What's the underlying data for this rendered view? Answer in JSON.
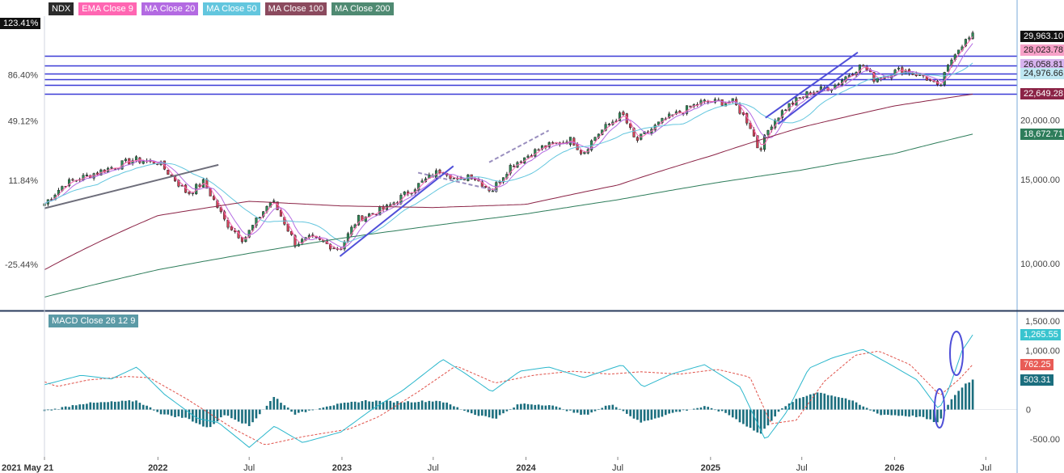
{
  "colors": {
    "up": "#2e8b57",
    "down": "#d4435a",
    "ema9": "#ff66b2",
    "ma20": "#b36ae2",
    "ma50": "#63c6de",
    "ma100": "#8b2346",
    "ma200": "#2e7d5b",
    "hline": "#3a3ad6",
    "trend": "#4f4fd8",
    "macd_line": "#2bb7cc",
    "signal_line": "#e0524a",
    "hist": "#1b6e7e"
  },
  "legend": [
    {
      "label": "NDX",
      "color": "#2b2b2b"
    },
    {
      "label": "EMA Close 9",
      "color": "#ff66b2"
    },
    {
      "label": "MA Close 20",
      "color": "#b36ae2"
    },
    {
      "label": "MA Close 50",
      "color": "#63c6de"
    },
    {
      "label": "MA Close 100",
      "color": "#8b4a5e"
    },
    {
      "label": "MA Close 200",
      "color": "#4f8a72"
    }
  ],
  "macd_legend": {
    "label": "MACD Close 26 12 9",
    "color": "#5b9aa6"
  },
  "left_badge": {
    "label": "123.41%"
  },
  "right_badges": [
    {
      "label": "29,963.10",
      "bg": "#111111",
      "fg": "#ffffff"
    },
    {
      "label": "28,023.78",
      "bg": "#f7a1c8",
      "fg": "#222222"
    },
    {
      "label": "26,058.81",
      "bg": "#d7b3ee",
      "fg": "#222222"
    },
    {
      "label": "24,976.66",
      "bg": "#bfe7f2",
      "fg": "#222222"
    },
    {
      "label": "22,649.28",
      "bg": "#8b2346",
      "fg": "#ffffff"
    },
    {
      "label": "18,672.71",
      "bg": "#2e7d5b",
      "fg": "#ffffff"
    }
  ],
  "macd_badges": [
    {
      "label": "1,265.55",
      "bg": "#39c4cf",
      "fg": "#ffffff"
    },
    {
      "label": "762.25",
      "bg": "#e85c56",
      "fg": "#ffffff"
    },
    {
      "label": "503.31",
      "bg": "#1b6e7e",
      "fg": "#ffffff"
    }
  ],
  "chart_data": {
    "type": "candlestick",
    "title": "",
    "symbol": "NDX",
    "y_scale": "log",
    "y_right_ticks": [
      {
        "value": 10000,
        "label": "10,000.00"
      },
      {
        "value": 15000,
        "label": "15,000.00"
      },
      {
        "value": 20000,
        "label": "20,000.00"
      }
    ],
    "y_left_ticks": [
      {
        "label": "86.40%",
        "value": 86.4
      },
      {
        "label": "49.12%",
        "value": 49.12
      },
      {
        "label": "11.84%",
        "value": 11.84
      },
      {
        "label": "-25.44%",
        "value": -25.44
      }
    ],
    "x_ticks": [
      {
        "date": "2021-05-21",
        "label": "2021 May 21"
      },
      {
        "date": "2022-01-01",
        "label": "2022"
      },
      {
        "date": "2022-07-01",
        "label": "Jul"
      },
      {
        "date": "2023-01-01",
        "label": "2023"
      },
      {
        "date": "2023-07-01",
        "label": "Jul"
      },
      {
        "date": "2024-01-01",
        "label": "2024"
      },
      {
        "date": "2024-07-01",
        "label": "Jul"
      },
      {
        "date": "2025-01-01",
        "label": "2025"
      },
      {
        "date": "2025-07-01",
        "label": "Jul"
      },
      {
        "date": "2026-01-01",
        "label": "2026"
      },
      {
        "date": "2026-07-01",
        "label": "Jul"
      }
    ],
    "x_range": [
      "2021-05-21",
      "2026-09-01"
    ],
    "y_range": [
      8000,
      33000
    ],
    "horizontal_levels": [
      27300,
      26000,
      24976.66,
      24300,
      23700,
      22649.28
    ],
    "price_path": [
      [
        "2021-05-21",
        13350
      ],
      [
        "2021-07-01",
        14700
      ],
      [
        "2021-09-01",
        15500
      ],
      [
        "2021-11-15",
        16500
      ],
      [
        "2022-01-01",
        16300
      ],
      [
        "2022-03-01",
        14000
      ],
      [
        "2022-04-01",
        14800
      ],
      [
        "2022-05-15",
        12200
      ],
      [
        "2022-06-20",
        11200
      ],
      [
        "2022-08-15",
        13600
      ],
      [
        "2022-09-30",
        11000
      ],
      [
        "2022-11-01",
        11300
      ],
      [
        "2022-12-28",
        10700
      ],
      [
        "2023-02-01",
        12400
      ],
      [
        "2023-04-01",
        13100
      ],
      [
        "2023-06-01",
        14600
      ],
      [
        "2023-07-20",
        15800
      ],
      [
        "2023-08-20",
        14800
      ],
      [
        "2023-09-10",
        15400
      ],
      [
        "2023-10-25",
        14200
      ],
      [
        "2023-12-01",
        16000
      ],
      [
        "2024-02-01",
        17500
      ],
      [
        "2024-04-01",
        18200
      ],
      [
        "2024-04-22",
        17000
      ],
      [
        "2024-05-20",
        18600
      ],
      [
        "2024-07-10",
        20600
      ],
      [
        "2024-08-05",
        18000
      ],
      [
        "2024-10-01",
        20000
      ],
      [
        "2024-12-15",
        21800
      ],
      [
        "2025-02-15",
        21800
      ],
      [
        "2025-03-20",
        19500
      ],
      [
        "2025-04-07",
        17200
      ],
      [
        "2025-05-01",
        19600
      ],
      [
        "2025-06-01",
        21300
      ],
      [
        "2025-07-15",
        22800
      ],
      [
        "2025-09-01",
        23500
      ],
      [
        "2025-10-29",
        26100
      ],
      [
        "2025-11-20",
        24400
      ],
      [
        "2026-01-15",
        25500
      ],
      [
        "2026-03-01",
        24700
      ],
      [
        "2026-03-30",
        23200
      ],
      [
        "2026-04-15",
        25500
      ],
      [
        "2026-05-01",
        27800
      ],
      [
        "2026-05-20",
        29200
      ],
      [
        "2026-06-05",
        29963.1
      ]
    ],
    "series": [
      {
        "name": "EMA Close 9",
        "last": 28023.78,
        "lag_weeks": 3,
        "offset": 1.0
      },
      {
        "name": "MA Close 20",
        "last": 26058.81,
        "lag_weeks": 6,
        "offset": 1.0
      },
      {
        "name": "MA Close 50",
        "last": 24976.66,
        "lag_weeks": 16,
        "offset": 1.0
      },
      {
        "name": "MA Close 100",
        "last": 22649.28,
        "points": [
          [
            "2021-05-21",
            9700
          ],
          [
            "2022-01-01",
            12600
          ],
          [
            "2022-07-01",
            13500
          ],
          [
            "2023-01-01",
            13200
          ],
          [
            "2023-07-01",
            13100
          ],
          [
            "2024-01-01",
            13300
          ],
          [
            "2024-07-01",
            14600
          ],
          [
            "2025-01-01",
            16800
          ],
          [
            "2025-07-01",
            19300
          ],
          [
            "2026-01-01",
            21400
          ],
          [
            "2026-06-05",
            22649.28
          ]
        ]
      },
      {
        "name": "MA Close 200",
        "last": 18672.71,
        "points": [
          [
            "2021-05-21",
            8500
          ],
          [
            "2022-01-01",
            9700
          ],
          [
            "2022-07-01",
            10500
          ],
          [
            "2023-01-01",
            11300
          ],
          [
            "2023-07-01",
            12000
          ],
          [
            "2024-01-01",
            12700
          ],
          [
            "2024-07-01",
            13600
          ],
          [
            "2025-01-01",
            14700
          ],
          [
            "2025-07-01",
            15700
          ],
          [
            "2026-01-01",
            17000
          ],
          [
            "2026-06-05",
            18672.71
          ]
        ]
      }
    ],
    "trendlines": [
      {
        "style": "solid",
        "color": "#6d6d7a",
        "from": [
          "2021-05-21",
          13050
        ],
        "to": [
          "2022-05-01",
          16100
        ]
      },
      {
        "style": "solid",
        "color": "#4f4fd8",
        "from": [
          "2022-12-28",
          10350
        ],
        "to": [
          "2023-08-10",
          16000
        ]
      },
      {
        "style": "solid",
        "color": "#4f4fd8",
        "from": [
          "2025-04-20",
          20200
        ],
        "to": [
          "2025-10-20",
          27700
        ]
      },
      {
        "style": "solid",
        "color": "#4f4fd8",
        "from": [
          "2025-05-15",
          19600
        ],
        "to": [
          "2025-10-10",
          25800
        ]
      },
      {
        "style": "dashed",
        "color": "#9a8fbf",
        "from": [
          "2023-06-01",
          15500
        ],
        "to": [
          "2023-11-05",
          14200
        ]
      },
      {
        "style": "dashed",
        "color": "#9a8fbf",
        "from": [
          "2023-10-20",
          16300
        ],
        "to": [
          "2024-02-15",
          19000
        ]
      }
    ],
    "macd": {
      "name": "MACD Close 26 12 9",
      "y_ticks": [
        1500,
        1000,
        0,
        -500
      ],
      "y_tick_labels": [
        "1,500.00",
        "1,000.00",
        "0",
        "-500.00"
      ],
      "y_range": [
        -800,
        1650
      ],
      "macd_line_last": 1265.55,
      "signal_last": 762.25,
      "histogram_last": 503.31,
      "macd_line": [
        [
          "2021-05-21",
          420
        ],
        [
          "2021-08-01",
          580
        ],
        [
          "2021-10-01",
          520
        ],
        [
          "2021-11-20",
          720
        ],
        [
          "2022-01-15",
          250
        ],
        [
          "2022-03-20",
          -150
        ],
        [
          "2022-05-01",
          -220
        ],
        [
          "2022-07-01",
          -640
        ],
        [
          "2022-08-20",
          -280
        ],
        [
          "2022-10-15",
          -560
        ],
        [
          "2022-12-30",
          -380
        ],
        [
          "2023-03-01",
          0
        ],
        [
          "2023-05-01",
          320
        ],
        [
          "2023-07-20",
          850
        ],
        [
          "2023-09-01",
          620
        ],
        [
          "2023-10-25",
          300
        ],
        [
          "2023-12-20",
          650
        ],
        [
          "2024-02-15",
          720
        ],
        [
          "2024-04-25",
          540
        ],
        [
          "2024-07-10",
          760
        ],
        [
          "2024-08-20",
          380
        ],
        [
          "2024-10-15",
          600
        ],
        [
          "2024-12-20",
          760
        ],
        [
          "2025-03-01",
          380
        ],
        [
          "2025-04-20",
          -520
        ],
        [
          "2025-06-01",
          -40
        ],
        [
          "2025-07-15",
          700
        ],
        [
          "2025-09-01",
          880
        ],
        [
          "2025-10-30",
          1020
        ],
        [
          "2025-12-20",
          780
        ],
        [
          "2026-02-15",
          500
        ],
        [
          "2026-03-30",
          0
        ],
        [
          "2026-04-20",
          380
        ],
        [
          "2026-05-15",
          1000
        ],
        [
          "2026-06-05",
          1265.55
        ]
      ],
      "signal_line": [
        [
          "2021-05-21",
          470
        ],
        [
          "2021-06-15",
          390
        ],
        [
          "2021-08-15",
          500
        ],
        [
          "2021-11-01",
          560
        ],
        [
          "2021-12-15",
          540
        ],
        [
          "2022-03-01",
          170
        ],
        [
          "2022-06-01",
          -330
        ],
        [
          "2022-08-01",
          -600
        ],
        [
          "2022-10-15",
          -460
        ],
        [
          "2023-01-15",
          -330
        ],
        [
          "2023-03-15",
          -120
        ],
        [
          "2023-06-01",
          300
        ],
        [
          "2023-08-15",
          740
        ],
        [
          "2023-11-01",
          450
        ],
        [
          "2024-01-15",
          580
        ],
        [
          "2024-04-01",
          650
        ],
        [
          "2024-06-15",
          600
        ],
        [
          "2024-08-15",
          640
        ],
        [
          "2024-11-01",
          600
        ],
        [
          "2025-01-15",
          680
        ],
        [
          "2025-03-20",
          550
        ],
        [
          "2025-05-01",
          -240
        ],
        [
          "2025-06-20",
          -180
        ],
        [
          "2025-08-15",
          480
        ],
        [
          "2025-10-15",
          920
        ],
        [
          "2025-12-01",
          990
        ],
        [
          "2026-02-01",
          760
        ],
        [
          "2026-04-01",
          240
        ],
        [
          "2026-05-10",
          520
        ],
        [
          "2026-06-05",
          762.25
        ]
      ],
      "histogram_path": [
        [
          "2021-05-21",
          -30
        ],
        [
          "2021-08-01",
          100
        ],
        [
          "2021-11-20",
          150
        ],
        [
          "2022-01-10",
          -80
        ],
        [
          "2022-03-01",
          -150
        ],
        [
          "2022-04-10",
          -320
        ],
        [
          "2022-05-15",
          -80
        ],
        [
          "2022-07-01",
          -280
        ],
        [
          "2022-08-20",
          220
        ],
        [
          "2022-10-01",
          -80
        ],
        [
          "2022-12-01",
          60
        ],
        [
          "2023-02-15",
          150
        ],
        [
          "2023-05-01",
          130
        ],
        [
          "2023-07-15",
          150
        ],
        [
          "2023-09-20",
          -80
        ],
        [
          "2023-11-01",
          -150
        ],
        [
          "2023-12-20",
          100
        ],
        [
          "2024-02-15",
          80
        ],
        [
          "2024-04-25",
          -100
        ],
        [
          "2024-06-20",
          100
        ],
        [
          "2024-08-15",
          -220
        ],
        [
          "2024-10-20",
          -50
        ],
        [
          "2024-12-20",
          50
        ],
        [
          "2025-02-01",
          -60
        ],
        [
          "2025-04-10",
          -420
        ],
        [
          "2025-05-15",
          -40
        ],
        [
          "2025-06-15",
          150
        ],
        [
          "2025-07-30",
          300
        ],
        [
          "2025-09-30",
          180
        ],
        [
          "2025-12-01",
          -80
        ],
        [
          "2026-02-20",
          -120
        ],
        [
          "2026-03-30",
          -230
        ],
        [
          "2026-04-20",
          140
        ],
        [
          "2026-05-20",
          430
        ],
        [
          "2026-06-05",
          503.31
        ]
      ]
    }
  }
}
